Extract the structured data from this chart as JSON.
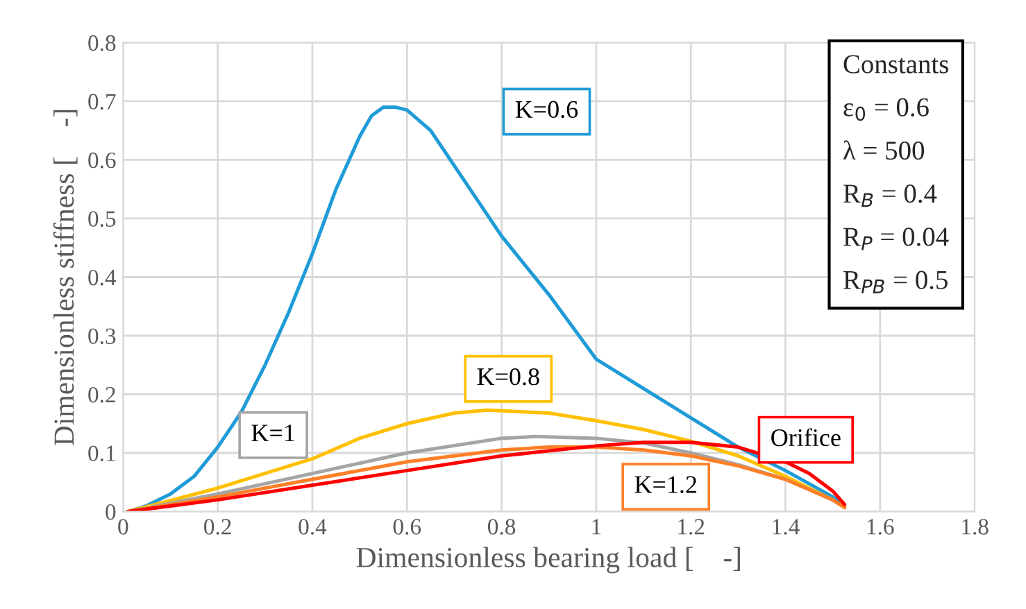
{
  "chart_data": {
    "type": "line",
    "xlabel": "Dimensionless bearing load [    -]",
    "ylabel": "Dimensionless stiffness [    -]",
    "xlim": [
      0,
      1.8
    ],
    "xticks": [
      0,
      0.2,
      0.4,
      0.6,
      0.8,
      1,
      1.2,
      1.4,
      1.6,
      1.8
    ],
    "ylim": [
      0,
      0.8
    ],
    "yticks": [
      0,
      0.1,
      0.2,
      0.3,
      0.4,
      0.5,
      0.6,
      0.7,
      0.8
    ],
    "grid": true,
    "legend": false,
    "marker": "none",
    "line_style": "solid",
    "series": [
      {
        "name": "K=0.6",
        "color": "#1f9bd7",
        "x": [
          0.01,
          0.05,
          0.1,
          0.15,
          0.2,
          0.25,
          0.3,
          0.35,
          0.4,
          0.45,
          0.5,
          0.525,
          0.55,
          0.575,
          0.6,
          0.65,
          0.7,
          0.75,
          0.8,
          0.9,
          1.0,
          1.1,
          1.2,
          1.3,
          1.4,
          1.5,
          1.525
        ],
        "values": [
          0.0,
          0.01,
          0.03,
          0.06,
          0.11,
          0.17,
          0.25,
          0.34,
          0.44,
          0.55,
          0.64,
          0.675,
          0.69,
          0.69,
          0.685,
          0.65,
          0.59,
          0.53,
          0.47,
          0.37,
          0.26,
          0.21,
          0.16,
          0.11,
          0.07,
          0.025,
          0.01
        ]
      },
      {
        "name": "K=0.8",
        "color": "#ffc000",
        "x": [
          0.01,
          0.2,
          0.4,
          0.5,
          0.6,
          0.7,
          0.77,
          0.9,
          1.0,
          1.1,
          1.2,
          1.3,
          1.4,
          1.5,
          1.525
        ],
        "values": [
          0.0,
          0.04,
          0.09,
          0.125,
          0.15,
          0.168,
          0.173,
          0.168,
          0.155,
          0.14,
          0.12,
          0.095,
          0.06,
          0.02,
          0.007
        ]
      },
      {
        "name": "K=1",
        "color": "#a5a5a5",
        "x": [
          0.01,
          0.2,
          0.4,
          0.6,
          0.8,
          0.87,
          1.0,
          1.1,
          1.2,
          1.3,
          1.4,
          1.5,
          1.525
        ],
        "values": [
          0.0,
          0.03,
          0.065,
          0.1,
          0.125,
          0.128,
          0.125,
          0.117,
          0.1,
          0.08,
          0.055,
          0.02,
          0.007
        ]
      },
      {
        "name": "K=1.2",
        "color": "#ff7f27",
        "x": [
          0.01,
          0.2,
          0.4,
          0.6,
          0.8,
          0.9,
          1.0,
          1.1,
          1.2,
          1.3,
          1.4,
          1.5,
          1.525
        ],
        "values": [
          0.0,
          0.025,
          0.055,
          0.085,
          0.105,
          0.11,
          0.11,
          0.105,
          0.095,
          0.078,
          0.055,
          0.02,
          0.007
        ]
      },
      {
        "name": "Orifice",
        "color": "#ff0000",
        "x": [
          0.01,
          0.2,
          0.4,
          0.6,
          0.8,
          1.0,
          1.1,
          1.2,
          1.3,
          1.4,
          1.45,
          1.5,
          1.525
        ],
        "values": [
          0.0,
          0.02,
          0.045,
          0.07,
          0.095,
          0.112,
          0.118,
          0.118,
          0.11,
          0.085,
          0.065,
          0.035,
          0.012
        ]
      }
    ],
    "annotations": [
      "Constants",
      "ε$_{0}$ = 0.6",
      "λ = 500",
      "R$_{B}$ = 0.4",
      "R$_{P}$ = 0.04",
      "R$_{PB}$ = 0.5"
    ]
  }
}
